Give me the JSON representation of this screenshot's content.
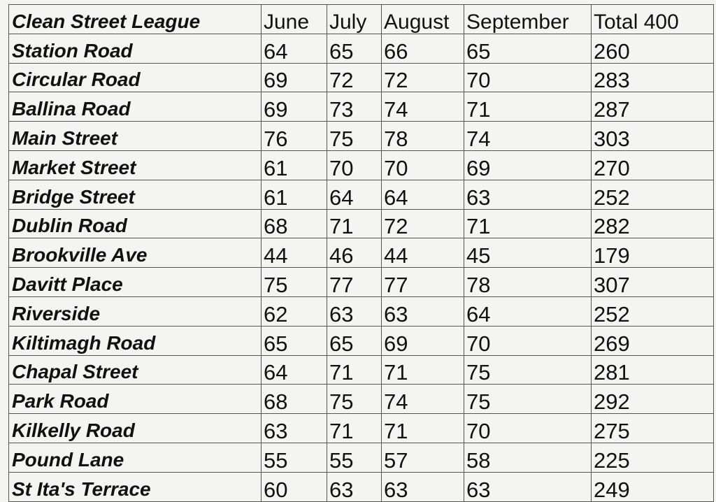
{
  "table": {
    "title": "Clean Street League",
    "columns": [
      "June",
      "July",
      "August",
      "September",
      "Total 400"
    ],
    "rows": [
      {
        "name": "Station Road",
        "values": [
          "64",
          "65",
          "66",
          "65",
          "260"
        ]
      },
      {
        "name": "Circular Road",
        "values": [
          "69",
          "72",
          "72",
          "70",
          "283"
        ]
      },
      {
        "name": "Ballina Road",
        "values": [
          "69",
          "73",
          "74",
          "71",
          "287"
        ]
      },
      {
        "name": "Main Street",
        "values": [
          "76",
          "75",
          "78",
          "74",
          "303"
        ]
      },
      {
        "name": "Market Street",
        "values": [
          "61",
          "70",
          "70",
          "69",
          "270"
        ]
      },
      {
        "name": "Bridge Street",
        "values": [
          "61",
          "64",
          "64",
          "63",
          "252"
        ]
      },
      {
        "name": "Dublin Road",
        "values": [
          "68",
          "71",
          "72",
          "71",
          "282"
        ]
      },
      {
        "name": "Brookville Ave",
        "values": [
          "44",
          "46",
          "44",
          "45",
          "179"
        ]
      },
      {
        "name": "Davitt Place",
        "values": [
          "75",
          "77",
          "77",
          "78",
          "307"
        ]
      },
      {
        "name": "Riverside",
        "values": [
          "62",
          "63",
          "63",
          "64",
          "252"
        ]
      },
      {
        "name": "Kiltimagh Road",
        "values": [
          "65",
          "65",
          "69",
          "70",
          "269"
        ]
      },
      {
        "name": "Chapal Street",
        "values": [
          "64",
          "71",
          "71",
          "75",
          "281"
        ]
      },
      {
        "name": "Park Road",
        "values": [
          "68",
          "75",
          "74",
          "75",
          "292"
        ]
      },
      {
        "name": "Kilkelly Road",
        "values": [
          "63",
          "71",
          "71",
          "70",
          "275"
        ]
      },
      {
        "name": "Pound Lane",
        "values": [
          "55",
          "55",
          "57",
          "58",
          "225"
        ]
      },
      {
        "name": "St Ita's Terrace",
        "values": [
          "60",
          "63",
          "63",
          "63",
          "249"
        ]
      }
    ]
  }
}
